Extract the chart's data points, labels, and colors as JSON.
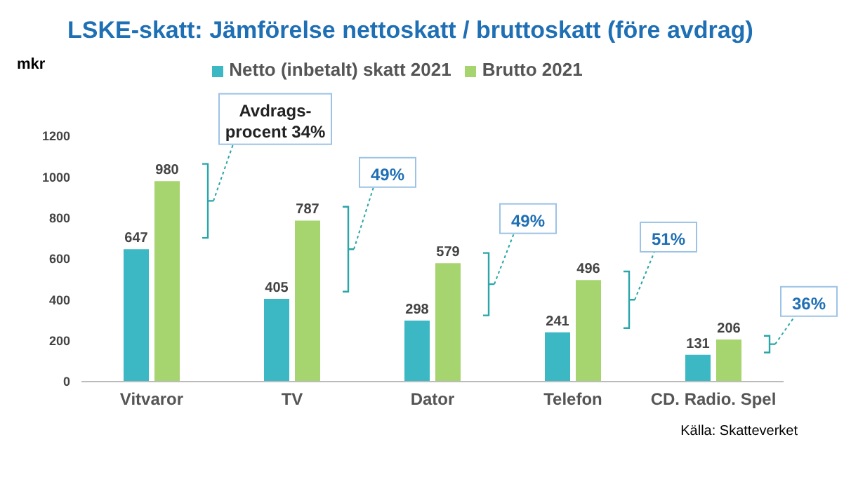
{
  "chart_data": {
    "type": "bar",
    "title": "LSKE-skatt: Jämförelse nettoskatt / bruttoskatt (före avdrag)",
    "ylabel": "mkr",
    "categories": [
      "Vitvaror",
      "TV",
      "Dator",
      "Telefon",
      "CD. Radio. Spel"
    ],
    "series": [
      {
        "name": "Netto (inbetalt) skatt 2021",
        "color": "#3bb8c4",
        "values": [
          647,
          405,
          298,
          241,
          131
        ]
      },
      {
        "name": "Brutto 2021",
        "color": "#a6d46e",
        "values": [
          980,
          787,
          579,
          496,
          206
        ]
      }
    ],
    "ylim": [
      0,
      1200
    ],
    "yticks": [
      0,
      200,
      400,
      600,
      800,
      1000,
      1200
    ],
    "grid": false,
    "legend": "top",
    "data_labels": true,
    "annotations": [
      "Avdrags-procent 34%",
      "49%",
      "49%",
      "51%",
      "36%",
      "Källa: Skatteverket"
    ]
  }
}
